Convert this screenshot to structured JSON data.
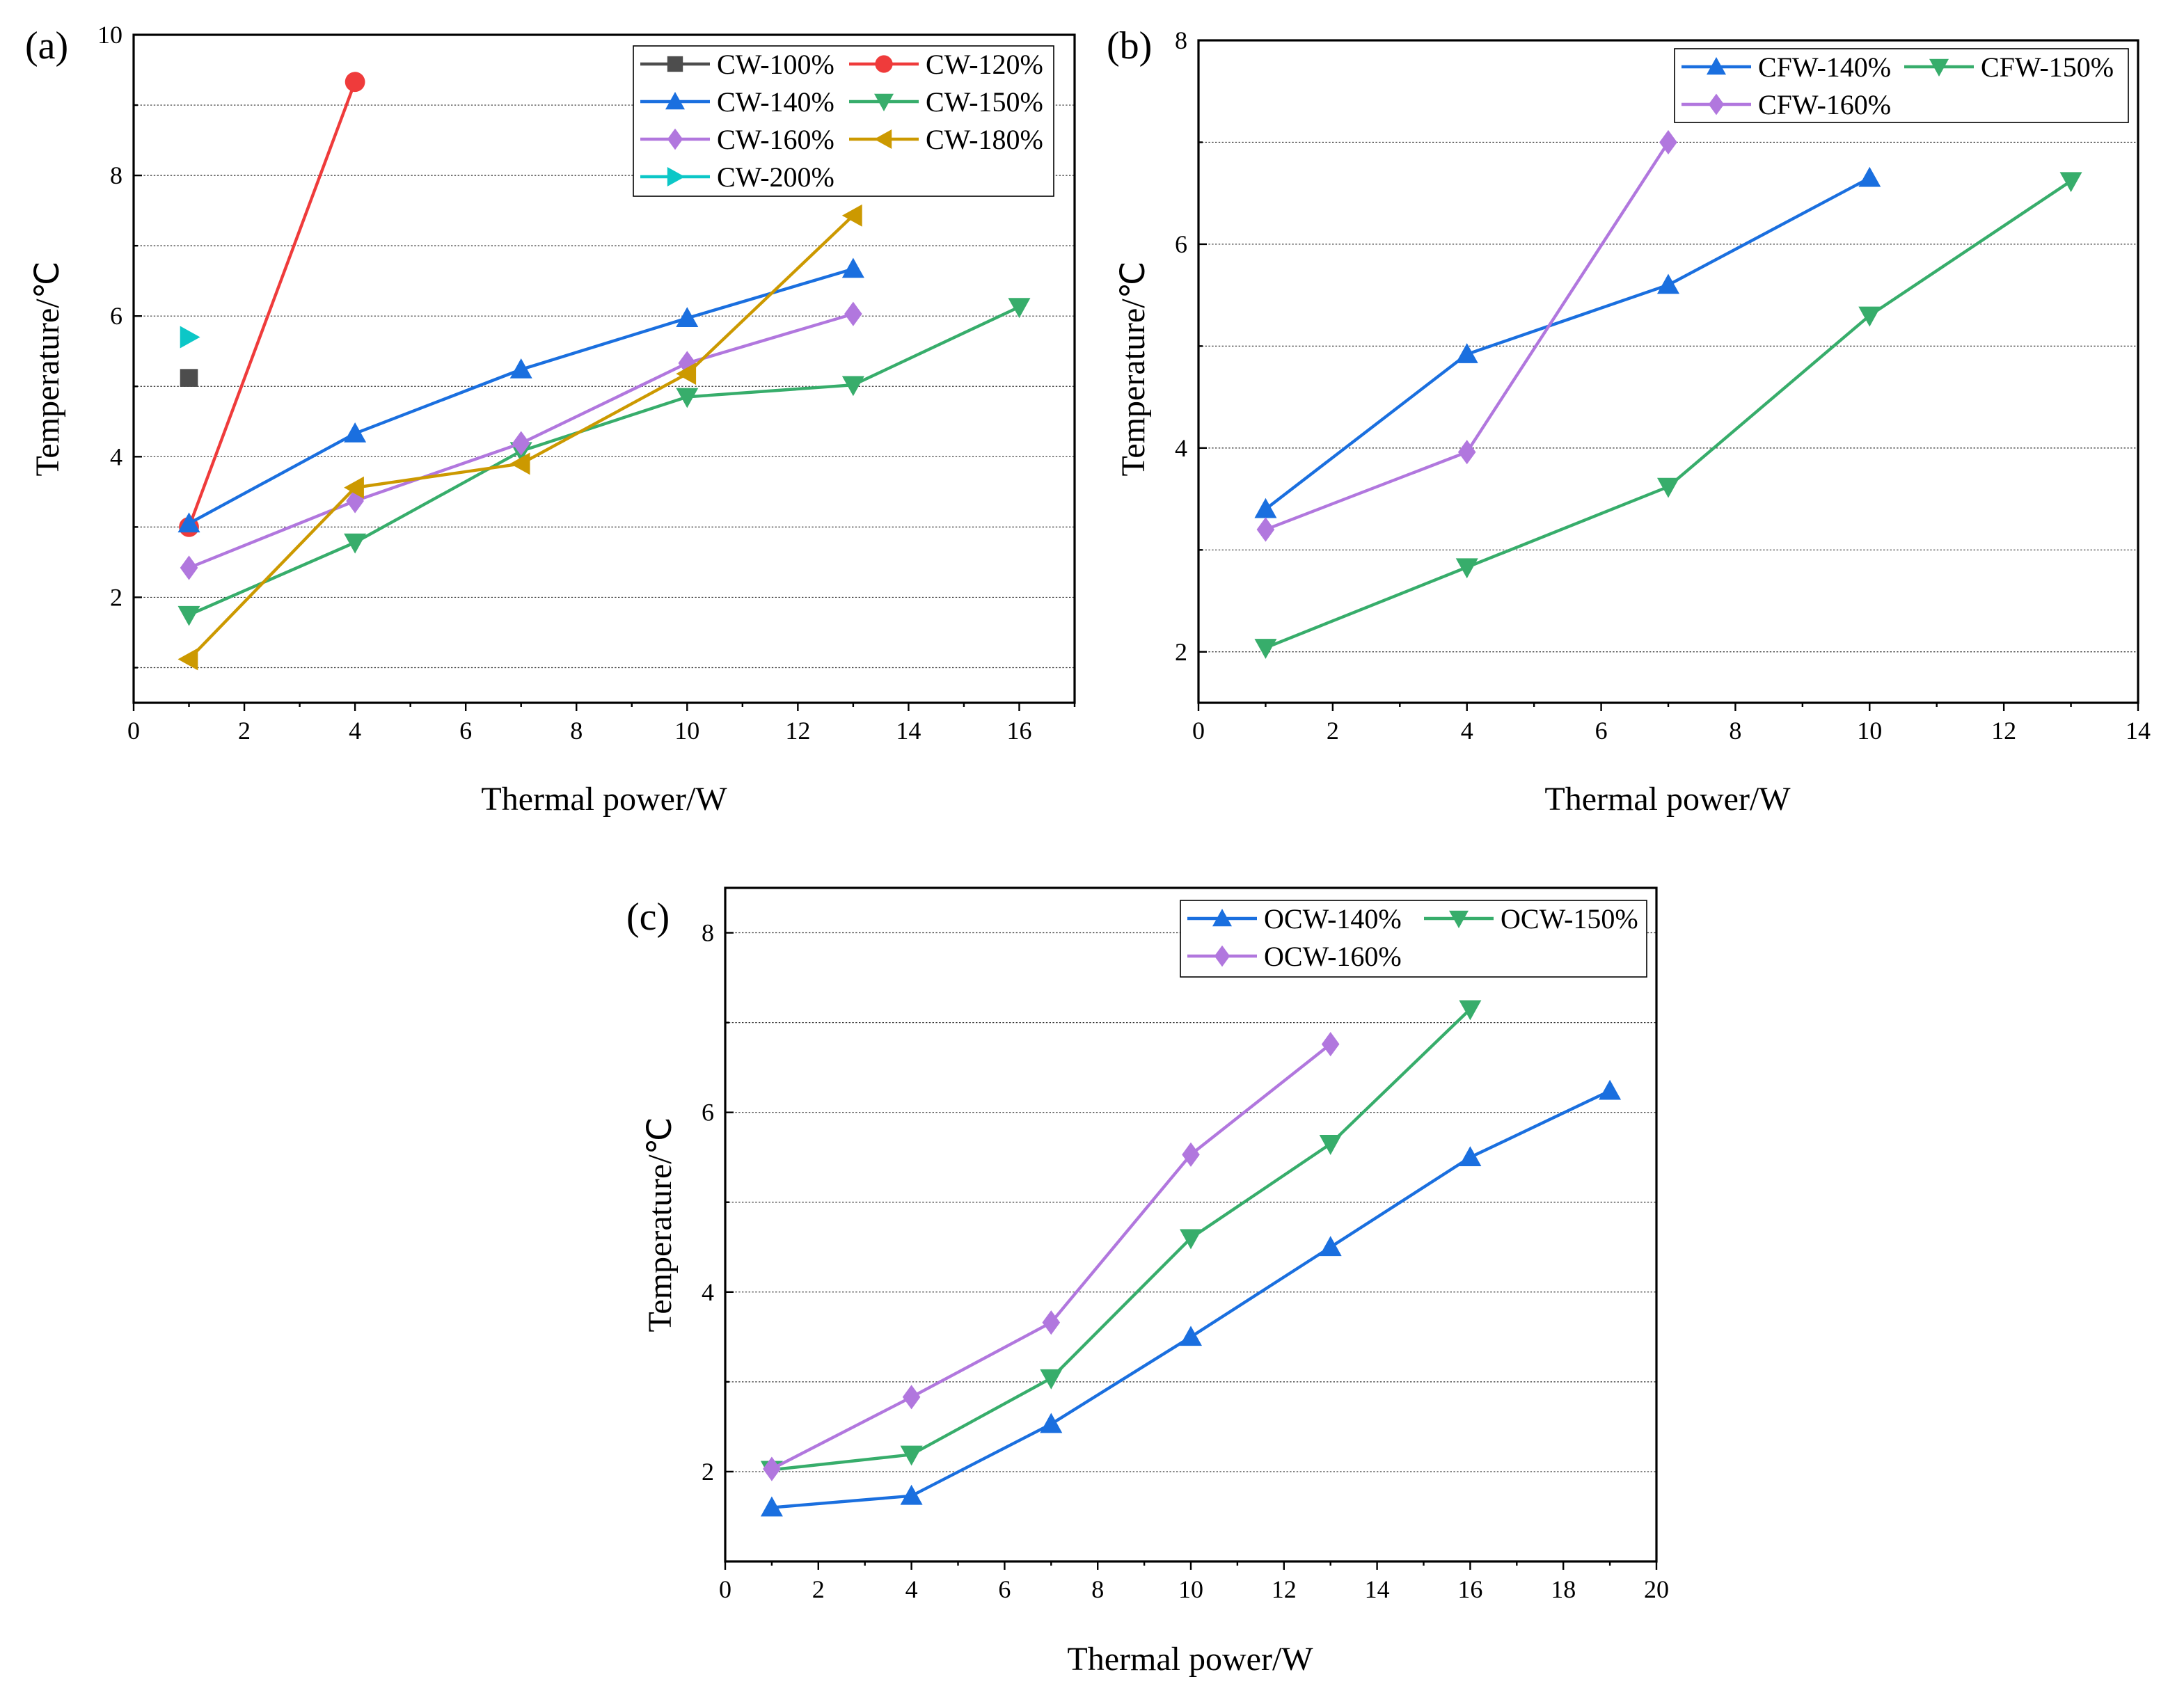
{
  "chart_data": [
    {
      "type": "line",
      "panel_label": "(a)",
      "xlabel": "Thermal power/W",
      "ylabel": "Temperature/℃",
      "xlim": [
        0,
        17
      ],
      "ylim": [
        0.5,
        10
      ],
      "xticks": [
        0,
        2,
        4,
        6,
        8,
        10,
        12,
        14,
        16
      ],
      "yticks": [
        2,
        4,
        6,
        8,
        10
      ],
      "grid": "horizontal dotted",
      "legend_position": "top-right",
      "series": [
        {
          "name": "CW-100%",
          "color": "#4d4d4d",
          "marker": "square",
          "x": [
            1
          ],
          "y": [
            5.12
          ]
        },
        {
          "name": "CW-120%",
          "color": "#ef3b3b",
          "marker": "circle",
          "x": [
            1,
            4
          ],
          "y": [
            3.0,
            9.33
          ]
        },
        {
          "name": "CW-140%",
          "color": "#1a6fdf",
          "marker": "triangle-up",
          "x": [
            1,
            4,
            7,
            10,
            13
          ],
          "y": [
            3.05,
            4.33,
            5.24,
            5.97,
            6.67
          ]
        },
        {
          "name": "CW-150%",
          "color": "#37ad6b",
          "marker": "triangle-down",
          "x": [
            1,
            4,
            7,
            10,
            13,
            16
          ],
          "y": [
            1.75,
            2.78,
            4.08,
            4.85,
            5.02,
            6.13
          ]
        },
        {
          "name": "CW-160%",
          "color": "#b177de",
          "marker": "diamond",
          "x": [
            1,
            4,
            7,
            10,
            13
          ],
          "y": [
            2.42,
            3.37,
            4.19,
            5.33,
            6.03
          ]
        },
        {
          "name": "CW-180%",
          "color": "#cc9900",
          "marker": "triangle-left",
          "x": [
            1,
            4,
            7,
            10,
            13
          ],
          "y": [
            1.12,
            3.56,
            3.9,
            5.18,
            7.43
          ]
        },
        {
          "name": "CW-200%",
          "color": "#0cc7c7",
          "marker": "triangle-right",
          "x": [
            1
          ],
          "y": [
            5.7
          ]
        }
      ]
    },
    {
      "type": "line",
      "panel_label": "(b)",
      "xlabel": "Thermal power/W",
      "ylabel": "Temperature/℃",
      "xlim": [
        0,
        14
      ],
      "ylim": [
        1.5,
        8
      ],
      "xticks": [
        0,
        2,
        4,
        6,
        8,
        10,
        12,
        14
      ],
      "yticks": [
        2,
        4,
        6,
        8
      ],
      "grid": "horizontal dotted",
      "legend_position": "top-right",
      "series": [
        {
          "name": "CFW-140%",
          "color": "#1a6fdf",
          "marker": "triangle-up",
          "x": [
            1,
            4,
            7,
            10
          ],
          "y": [
            3.4,
            4.92,
            5.6,
            6.65
          ]
        },
        {
          "name": "CFW-150%",
          "color": "#37ad6b",
          "marker": "triangle-down",
          "x": [
            1,
            4,
            7,
            10,
            13
          ],
          "y": [
            2.04,
            2.83,
            3.62,
            5.3,
            6.62
          ]
        },
        {
          "name": "CFW-160%",
          "color": "#b177de",
          "marker": "diamond",
          "x": [
            1,
            4,
            7
          ],
          "y": [
            3.2,
            3.96,
            7.0
          ]
        }
      ]
    },
    {
      "type": "line",
      "panel_label": "(c)",
      "xlabel": "Thermal power/W",
      "ylabel": "Temperature/℃",
      "xlim": [
        0,
        20
      ],
      "ylim": [
        1,
        8.5
      ],
      "xticks": [
        0,
        2,
        4,
        6,
        8,
        10,
        12,
        14,
        16,
        18,
        20
      ],
      "yticks": [
        2,
        4,
        6,
        8
      ],
      "grid": "horizontal dotted",
      "legend_position": "top-right",
      "series": [
        {
          "name": "OCW-140%",
          "color": "#1a6fdf",
          "marker": "triangle-up",
          "x": [
            1,
            4,
            7,
            10,
            13,
            16,
            19
          ],
          "y": [
            1.6,
            1.73,
            2.53,
            3.5,
            4.5,
            5.5,
            6.24
          ]
        },
        {
          "name": "OCW-150%",
          "color": "#37ad6b",
          "marker": "triangle-down",
          "x": [
            1,
            4,
            7,
            10,
            13,
            16
          ],
          "y": [
            2.02,
            2.19,
            3.04,
            4.6,
            5.65,
            7.15
          ]
        },
        {
          "name": "OCW-160%",
          "color": "#b177de",
          "marker": "diamond",
          "x": [
            1,
            4,
            7,
            10,
            13
          ],
          "y": [
            2.03,
            2.83,
            3.66,
            5.53,
            6.76
          ]
        }
      ]
    }
  ]
}
